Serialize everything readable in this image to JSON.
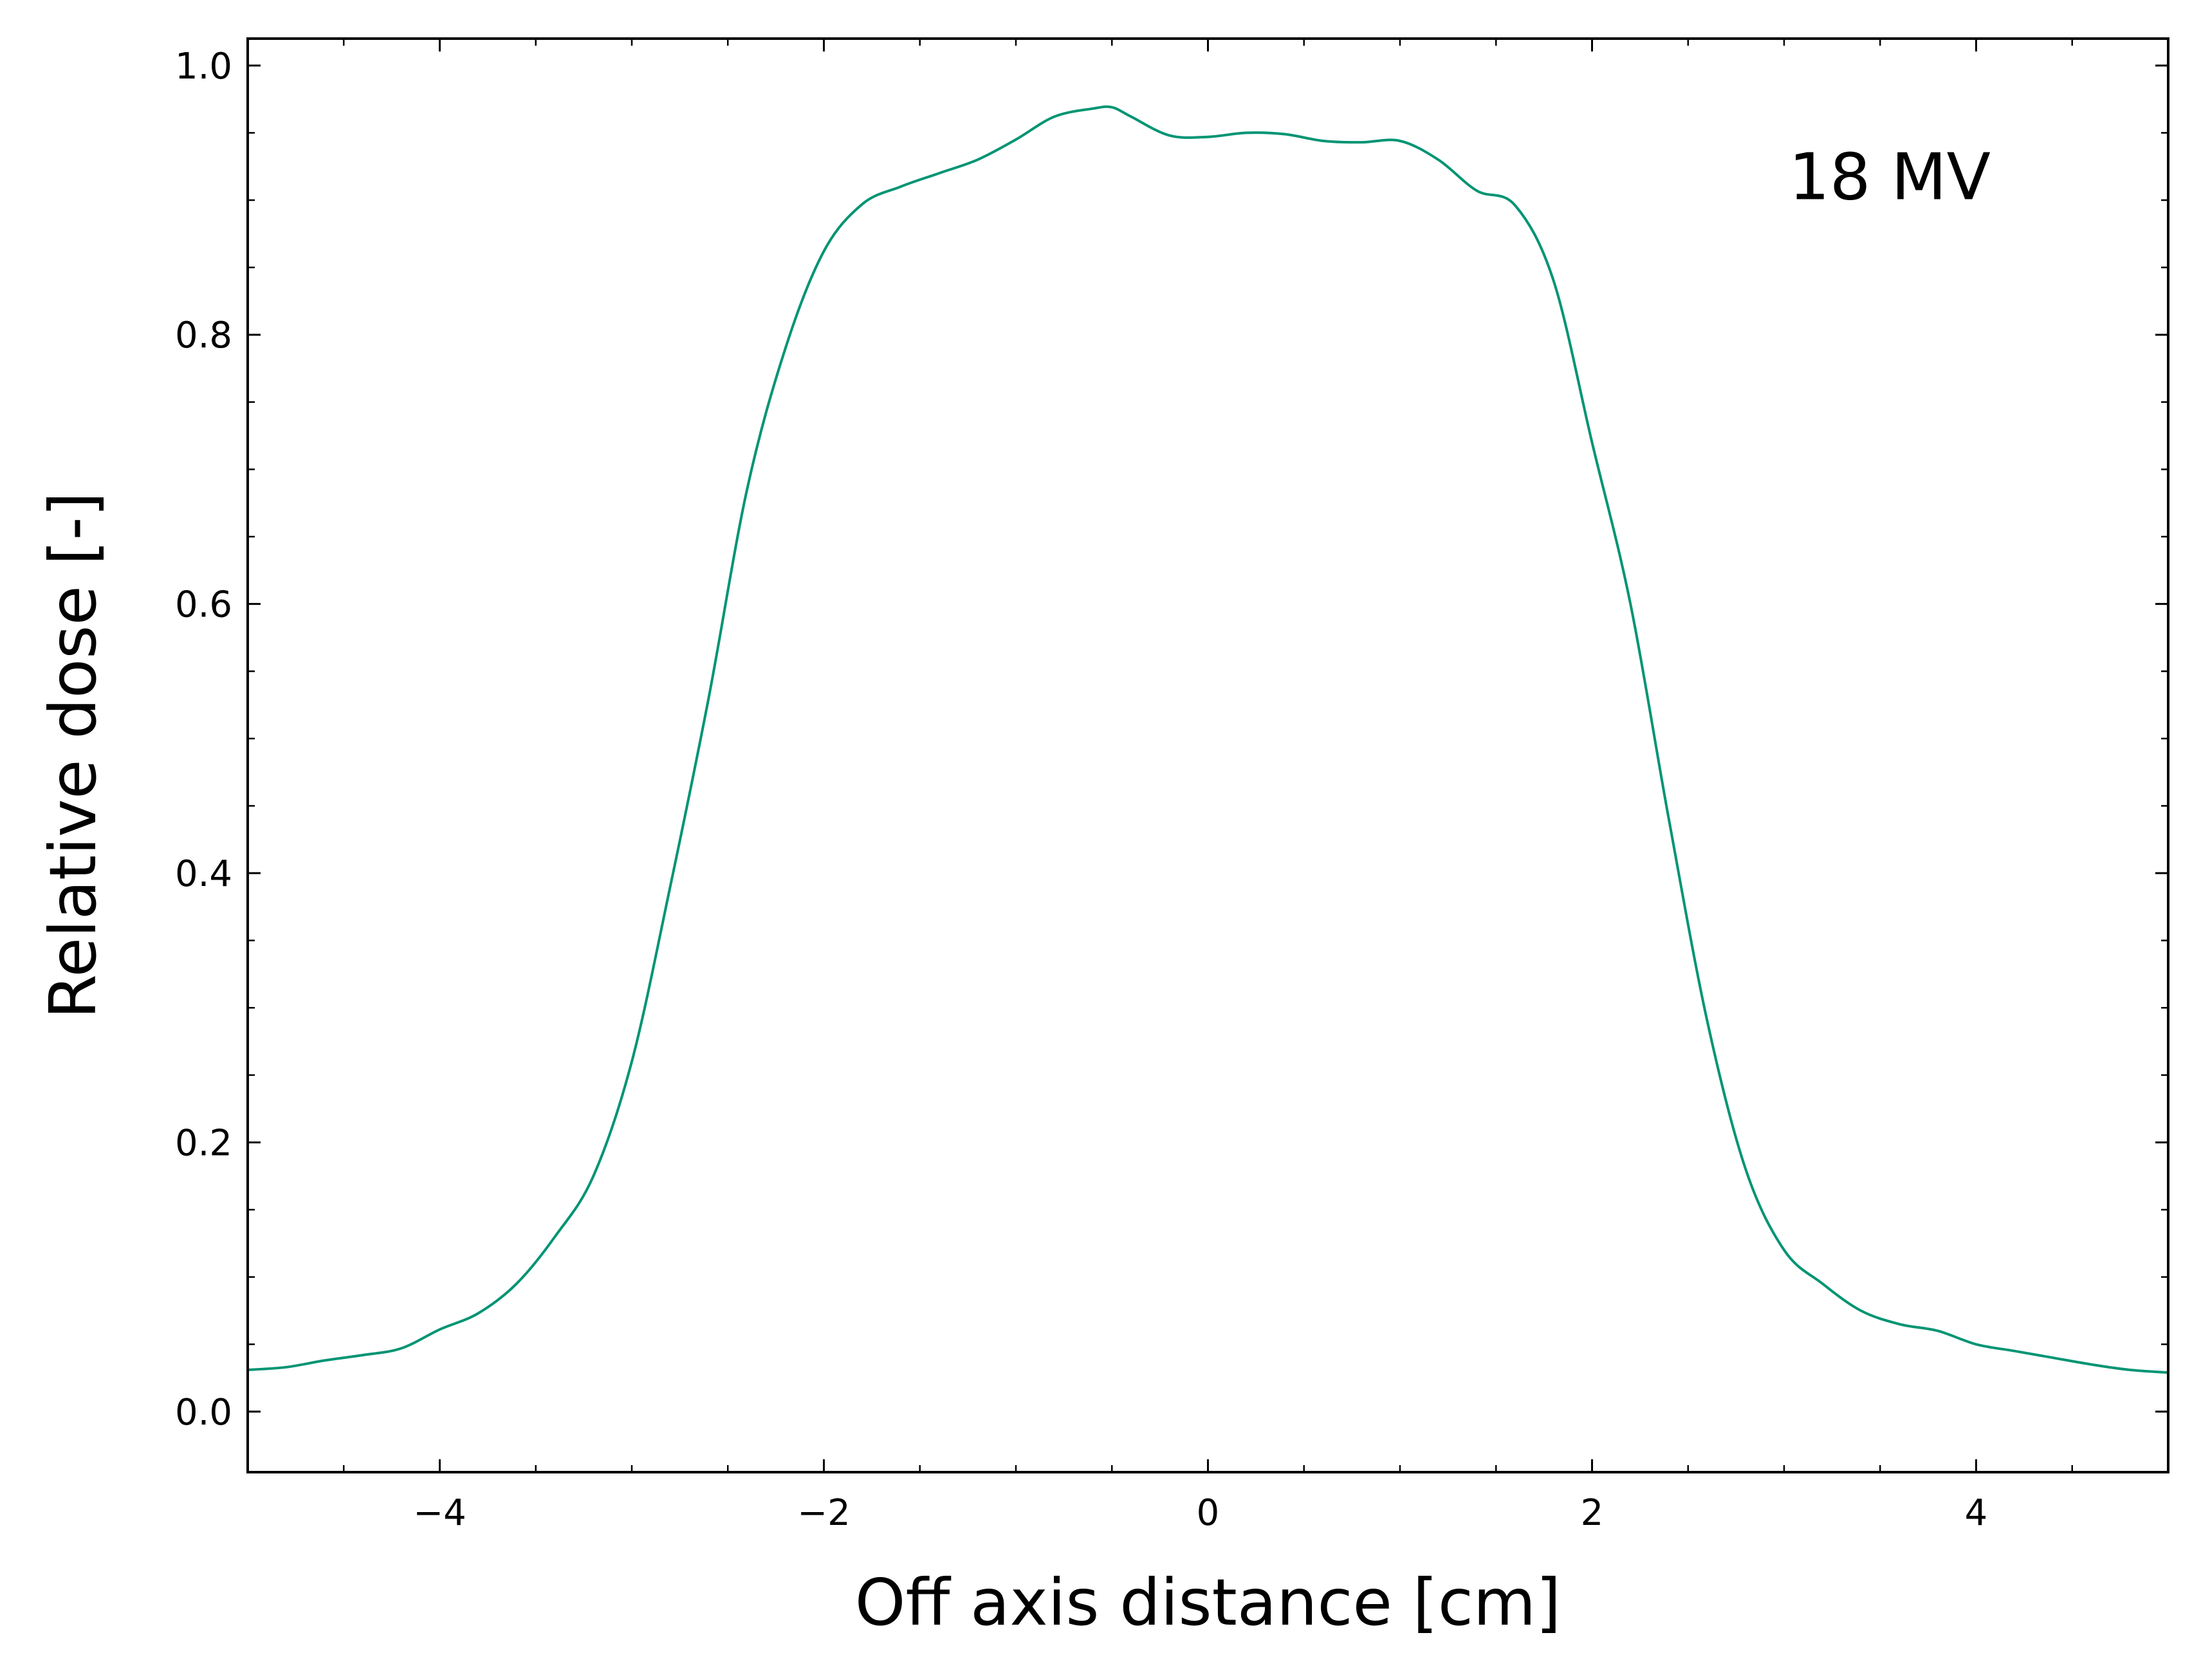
{
  "chart_data": {
    "type": "line",
    "title": "",
    "xlabel": "Off axis distance [cm]",
    "ylabel": "Relative dose [-]",
    "xlim": [
      -5,
      5
    ],
    "ylim": [
      -0.045,
      1.02
    ],
    "grid": false,
    "legend": "none",
    "ticks_direction": "in",
    "minor_ticks": true,
    "x_ticks": [
      -4,
      -2,
      0,
      2,
      4
    ],
    "x_tick_labels": [
      "−4",
      "−2",
      "0",
      "2",
      "4"
    ],
    "y_ticks": [
      0.0,
      0.2,
      0.4,
      0.6,
      0.8,
      1.0
    ],
    "y_tick_labels": [
      "0.0",
      "0.2",
      "0.4",
      "0.6",
      "0.8",
      "1.0"
    ],
    "annotations": [
      {
        "text": "18 MV",
        "x": 3.55,
        "y": 0.918
      }
    ],
    "series": [
      {
        "color": "#009473",
        "x": [
          -5.0,
          -4.8,
          -4.6,
          -4.4,
          -4.2,
          -4.0,
          -3.8,
          -3.6,
          -3.4,
          -3.2,
          -3.0,
          -2.8,
          -2.6,
          -2.4,
          -2.2,
          -2.0,
          -1.8,
          -1.6,
          -1.4,
          -1.2,
          -1.0,
          -0.8,
          -0.6,
          -0.5,
          -0.4,
          -0.2,
          0.0,
          0.2,
          0.4,
          0.6,
          0.8,
          1.0,
          1.2,
          1.4,
          1.6,
          1.8,
          2.0,
          2.2,
          2.4,
          2.6,
          2.8,
          3.0,
          3.2,
          3.4,
          3.6,
          3.8,
          4.0,
          4.2,
          4.4,
          4.6,
          4.8,
          5.0
        ],
        "y": [
          0.031,
          0.033,
          0.038,
          0.042,
          0.047,
          0.061,
          0.073,
          0.095,
          0.13,
          0.175,
          0.26,
          0.39,
          0.53,
          0.685,
          0.79,
          0.862,
          0.897,
          0.91,
          0.92,
          0.93,
          0.945,
          0.962,
          0.968,
          0.969,
          0.962,
          0.948,
          0.947,
          0.95,
          0.949,
          0.944,
          0.943,
          0.944,
          0.93,
          0.907,
          0.896,
          0.84,
          0.72,
          0.6,
          0.44,
          0.29,
          0.18,
          0.12,
          0.095,
          0.075,
          0.065,
          0.06,
          0.05,
          0.045,
          0.04,
          0.035,
          0.031,
          0.029
        ]
      }
    ]
  }
}
